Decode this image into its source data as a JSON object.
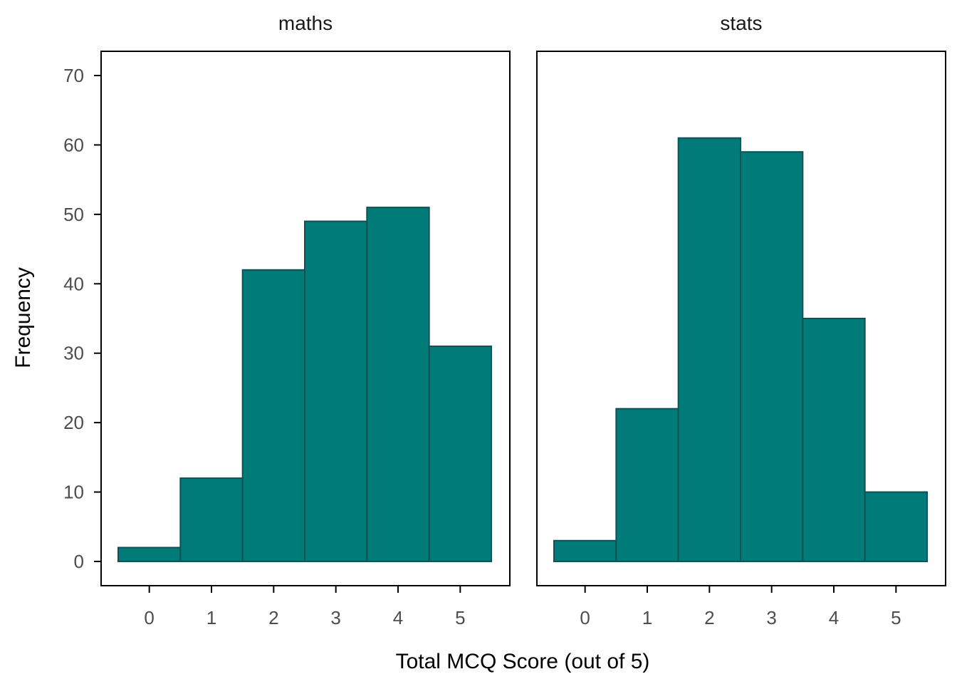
{
  "colors": {
    "bar_fill": "#007b77",
    "bar_stroke": "#124f57"
  },
  "chart_data": {
    "type": "bar",
    "title": "",
    "xlabel": "Total MCQ Score (out of 5)",
    "ylabel": "Frequency",
    "ylim": [
      0,
      70
    ],
    "yticks": [
      0,
      10,
      20,
      30,
      40,
      50,
      60,
      70
    ],
    "xlim": [
      -0.5,
      5.5
    ],
    "xticks": [
      0,
      1,
      2,
      3,
      4,
      5
    ],
    "categories": [
      "0",
      "1",
      "2",
      "3",
      "4",
      "5"
    ],
    "grid": false,
    "series": [
      {
        "name": "maths",
        "values": [
          2,
          12,
          42,
          49,
          51,
          31
        ]
      },
      {
        "name": "stats",
        "values": [
          3,
          22,
          61,
          59,
          35,
          10
        ]
      }
    ]
  }
}
